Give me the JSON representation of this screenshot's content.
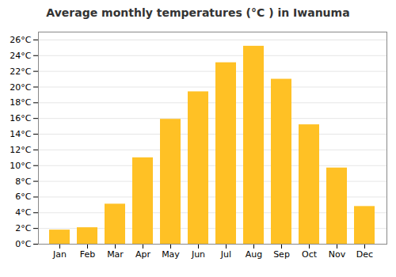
{
  "chart_data": {
    "type": "bar",
    "title": "Average monthly temperatures (°C ) in Iwanuma",
    "categories": [
      "Jan",
      "Feb",
      "Mar",
      "Apr",
      "May",
      "Jun",
      "Jul",
      "Aug",
      "Sep",
      "Oct",
      "Nov",
      "Dec"
    ],
    "values": [
      1.8,
      2.1,
      5.1,
      11.0,
      15.9,
      19.4,
      23.1,
      25.2,
      21.0,
      15.2,
      9.7,
      4.8
    ],
    "color": "#FFC125",
    "ylim": [
      0,
      27
    ],
    "yticks": [
      {
        "value": 0,
        "label": "0°C"
      },
      {
        "value": 2,
        "label": "2°C"
      },
      {
        "value": 4,
        "label": "4°C"
      },
      {
        "value": 6,
        "label": "6°C"
      },
      {
        "value": 8,
        "label": "8°C"
      },
      {
        "value": 10,
        "label": "10°C"
      },
      {
        "value": 12,
        "label": "12°C"
      },
      {
        "value": 14,
        "label": "14°C"
      },
      {
        "value": 16,
        "label": "16°C"
      },
      {
        "value": 18,
        "label": "18°C"
      },
      {
        "value": 20,
        "label": "20°C"
      },
      {
        "value": 22,
        "label": "22°C"
      },
      {
        "value": 24,
        "label": "24°C"
      },
      {
        "value": 26,
        "label": "26°C"
      }
    ],
    "grid": true
  }
}
